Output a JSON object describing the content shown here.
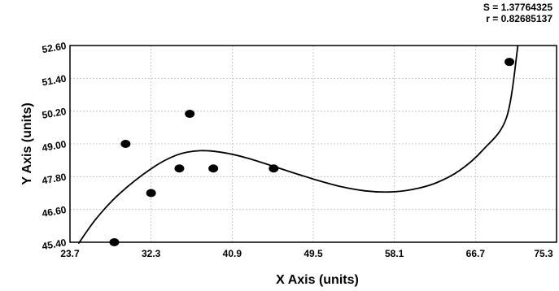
{
  "stats": {
    "s_text": "S = 1.37764325",
    "r_text": "r = 0.82685137"
  },
  "chart_data": {
    "type": "scatter",
    "title": "",
    "xlabel": "X Axis (units)",
    "ylabel": "Y Axis (units)",
    "xlim": [
      23.7,
      75.3
    ],
    "ylim": [
      45.4,
      52.6
    ],
    "x_ticks": [
      "23.7",
      "32.3",
      "40.9",
      "49.5",
      "58.1",
      "66.7",
      "75.3"
    ],
    "y_ticks": [
      "45.40",
      "46.60",
      "47.80",
      "49.00",
      "50.20",
      "51.40",
      "52.60"
    ],
    "grid": true,
    "points": {
      "x": [
        28.4,
        29.6,
        32.3,
        35.3,
        36.4,
        38.9,
        45.3,
        70.3
      ],
      "y": [
        45.4,
        49.0,
        47.2,
        48.1,
        50.1,
        48.1,
        48.1,
        52.0
      ]
    },
    "fit_curve": {
      "x": [
        24.6,
        26.5,
        28.9,
        32.3,
        35.0,
        37.5,
        40.0,
        42.5,
        45.0,
        47.5,
        50.0,
        52.5,
        55.0,
        57.5,
        60.0,
        62.5,
        65.0,
        67.5,
        70.0,
        71.2
      ],
      "y": [
        45.35,
        46.27,
        47.16,
        48.09,
        48.59,
        48.75,
        48.68,
        48.48,
        48.21,
        47.93,
        47.66,
        47.43,
        47.28,
        47.24,
        47.33,
        47.57,
        48.02,
        48.78,
        49.97,
        52.6
      ]
    }
  }
}
